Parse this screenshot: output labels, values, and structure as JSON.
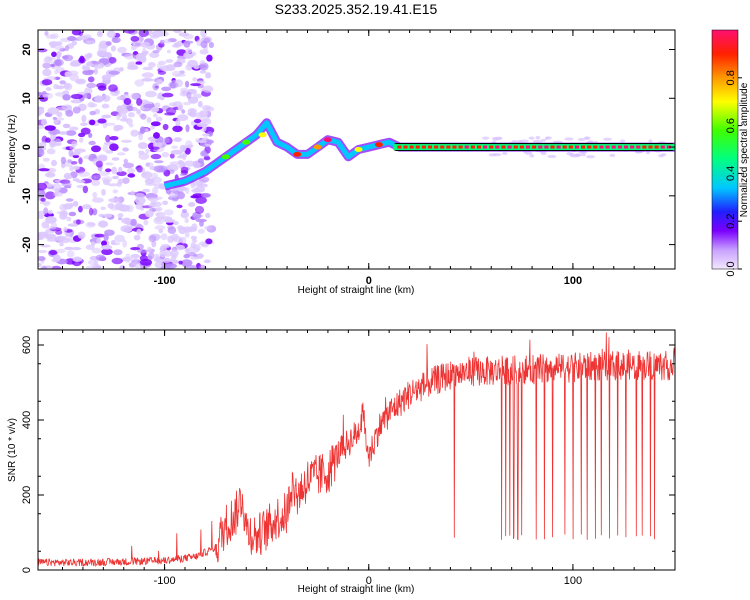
{
  "title": "S233.2025.352.19.41.E15",
  "chart_data": [
    {
      "type": "heatmap",
      "xlabel": "Height of straight line (km)",
      "ylabel": "Frequency (Hz)",
      "xlim": [
        -162,
        150
      ],
      "ylim": [
        -25,
        24
      ],
      "x_ticks": [
        -100,
        0,
        100
      ],
      "y_ticks": [
        -20,
        -10,
        0,
        10,
        20
      ],
      "colorbar": {
        "label": "Normalized spectral amplitude",
        "range": [
          0,
          1
        ],
        "ticks": [
          0.0,
          0.2,
          0.4,
          0.6,
          0.8
        ]
      },
      "ridge": {
        "description_x": [
          -100,
          -90,
          -80,
          -70,
          -60,
          -55,
          -50,
          -45,
          -40,
          -35,
          -30,
          -25,
          -20,
          -15,
          -10,
          -5,
          0,
          5,
          10,
          15,
          150
        ],
        "frequency_hz": [
          -8,
          -7,
          -5,
          -2,
          1,
          2.5,
          5,
          1,
          0,
          -1.5,
          -1.5,
          0,
          1.5,
          1,
          -2,
          -0.5,
          0,
          0.5,
          1,
          0,
          0
        ]
      }
    },
    {
      "type": "line",
      "xlabel": "Height of straight line (km)",
      "ylabel": "SNR (10 * v/v)",
      "xlim": [
        -162,
        150
      ],
      "ylim": [
        0,
        640
      ],
      "x_ticks": [
        -100,
        0,
        100
      ],
      "y_ticks": [
        0,
        200,
        400,
        600
      ],
      "series": [
        {
          "name": "SNR",
          "color": "#ee3333",
          "x": [
            -162,
            -140,
            -120,
            -100,
            -85,
            -75,
            -70,
            -65,
            -62,
            -60,
            -55,
            -50,
            -45,
            -40,
            -38,
            -35,
            -30,
            -25,
            -20,
            -15,
            -10,
            -5,
            -3,
            0,
            5,
            10,
            20,
            30,
            40,
            50,
            60,
            80,
            100,
            120,
            150
          ],
          "y": [
            20,
            20,
            22,
            25,
            35,
            60,
            120,
            150,
            200,
            110,
            90,
            110,
            140,
            150,
            230,
            200,
            240,
            250,
            260,
            310,
            340,
            370,
            420,
            300,
            380,
            420,
            470,
            500,
            520,
            530,
            530,
            535,
            540,
            545,
            545
          ]
        }
      ],
      "dropouts_x": [
        42,
        65,
        67,
        69,
        71,
        73,
        75,
        82,
        86,
        90,
        96,
        100,
        104,
        107,
        111,
        114,
        118,
        122,
        126,
        131,
        134,
        138,
        140
      ]
    }
  ]
}
